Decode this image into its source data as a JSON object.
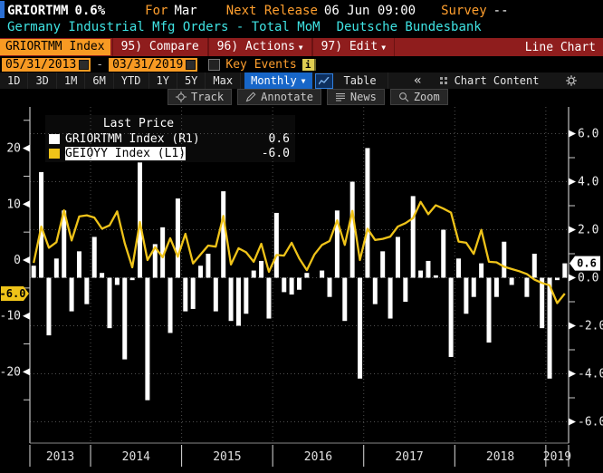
{
  "title_bar": {
    "ticker": "GRIORTMM",
    "last_value": "0.6%",
    "for_label": "For",
    "for_value": "Mar",
    "next_release_label": "Next Release",
    "next_release_value": "06 Jun 09:00",
    "survey_label": "Survey",
    "survey_value": "--",
    "description": "Germany Industrial Mfg Orders - Total MoM",
    "source": "Deutsche Bundesbank"
  },
  "toolbar": {
    "security_box": "GRIORTMM Index",
    "compare": "95) Compare",
    "actions": "96) Actions",
    "edit": "97) Edit",
    "view_label": "Line Chart"
  },
  "range_bar": {
    "start_date": "05/31/2013",
    "end_date": "03/31/2019",
    "separator": "-",
    "key_events_label": "Key Events",
    "info_icon_label": "i"
  },
  "period_bar": {
    "periods": [
      "1D",
      "3D",
      "1M",
      "6M",
      "YTD",
      "1Y",
      "5Y",
      "Max"
    ],
    "frequency": "Monthly",
    "table_label": "Table",
    "collapse_glyph": "«",
    "chart_content_label": "Chart Content"
  },
  "chart_toolbar": {
    "track": "Track",
    "annotate": "Annotate",
    "news": "News",
    "zoom": "Zoom"
  },
  "legend": {
    "title": "Last Price",
    "series": [
      {
        "label": "GRIORTMM Index  (R1)",
        "value": "0.6",
        "color": "#ffffff",
        "selected": false
      },
      {
        "label": "GEIOYY Index  (L1)",
        "value": "-6.0",
        "color": "#efc319",
        "selected": true
      }
    ]
  },
  "axes": {
    "left_ticks": [
      20,
      10,
      0,
      -10,
      -20
    ],
    "left_minor_ticks": [
      25,
      15,
      5,
      -5,
      -15,
      -25
    ],
    "left_badge": "-6.0",
    "left_badge_value": -6.0,
    "left_badge_color": "#efc319",
    "right_ticks": [
      "6.0",
      "4.0",
      "2.0",
      "0.0",
      "-2.0",
      "-4.0",
      "-6.0"
    ],
    "right_minor_ticks": [
      5,
      3,
      1,
      -1,
      -3,
      -5
    ],
    "right_badge": "0.6",
    "right_badge_value": 0.6,
    "right_badge_color": "#ffffff",
    "year_labels": [
      "2013",
      "2014",
      "2015",
      "2016",
      "2017",
      "2018",
      "2019"
    ]
  },
  "chart_data": {
    "type": "combo",
    "title": "GRIORTMM Index Line Chart",
    "x_start": "2013-05",
    "x_end": "2019-03",
    "frequency": "monthly",
    "grid": "dotted",
    "legend_position": "top-left",
    "left_ylim": [
      -27,
      27
    ],
    "right_ylim": [
      -7.1,
      6.9
    ],
    "months": [
      "2013-05",
      "2013-06",
      "2013-07",
      "2013-08",
      "2013-09",
      "2013-10",
      "2013-11",
      "2013-12",
      "2014-01",
      "2014-02",
      "2014-03",
      "2014-04",
      "2014-05",
      "2014-06",
      "2014-07",
      "2014-08",
      "2014-09",
      "2014-10",
      "2014-11",
      "2014-12",
      "2015-01",
      "2015-02",
      "2015-03",
      "2015-04",
      "2015-05",
      "2015-06",
      "2015-07",
      "2015-08",
      "2015-09",
      "2015-10",
      "2015-11",
      "2015-12",
      "2016-01",
      "2016-02",
      "2016-03",
      "2016-04",
      "2016-05",
      "2016-06",
      "2016-07",
      "2016-08",
      "2016-09",
      "2016-10",
      "2016-11",
      "2016-12",
      "2017-01",
      "2017-02",
      "2017-03",
      "2017-04",
      "2017-05",
      "2017-06",
      "2017-07",
      "2017-08",
      "2017-09",
      "2017-10",
      "2017-11",
      "2017-12",
      "2018-01",
      "2018-02",
      "2018-03",
      "2018-04",
      "2018-05",
      "2018-06",
      "2018-07",
      "2018-08",
      "2018-09",
      "2018-10",
      "2018-11",
      "2018-12",
      "2019-01",
      "2019-02",
      "2019-03"
    ],
    "series": [
      {
        "name": "GRIORTMM Index",
        "axis": "right",
        "style": "bar",
        "color": "#ffffff",
        "values": [
          0.5,
          4.4,
          -2.4,
          0.8,
          2.8,
          -1.4,
          1.1,
          -1.1,
          1.7,
          0.2,
          -2.1,
          -0.3,
          -3.4,
          -0.1,
          4.8,
          -5.1,
          1.4,
          2.1,
          -2.3,
          3.3,
          -1.4,
          -1.3,
          0.5,
          1.0,
          -1.4,
          3.6,
          -1.8,
          -2.0,
          -1.5,
          0.3,
          0.7,
          -1.7,
          2.7,
          -0.6,
          -0.7,
          -0.5,
          0.2,
          0.0,
          0.3,
          -0.8,
          2.8,
          -1.8,
          4.0,
          -4.2,
          5.4,
          -1.1,
          1.1,
          -1.7,
          1.7,
          -1.0,
          3.4,
          0.3,
          0.7,
          0.1,
          2.0,
          -3.3,
          0.8,
          -1.5,
          -0.8,
          0.6,
          -2.7,
          -0.8,
          1.5,
          -0.3,
          0.0,
          -0.8,
          1.0,
          -2.1,
          -4.2,
          -0.1,
          0.6
        ]
      },
      {
        "name": "GEIOYY Index",
        "axis": "left",
        "style": "line",
        "color": "#efc319",
        "values": [
          -0.5,
          6.0,
          2.2,
          3.2,
          8.9,
          3.5,
          7.8,
          8.0,
          7.6,
          5.6,
          6.2,
          8.7,
          3.0,
          -1.3,
          6.8,
          0.0,
          2.3,
          0.5,
          3.9,
          0.6,
          4.7,
          -0.6,
          1.0,
          2.6,
          2.4,
          7.9,
          -0.8,
          2.1,
          1.4,
          -0.3,
          2.9,
          -2.1,
          0.9,
          0.8,
          3.1,
          0.3,
          -1.8,
          1.0,
          2.7,
          3.4,
          7.1,
          2.7,
          8.8,
          0.0,
          5.6,
          3.6,
          3.8,
          4.2,
          6.0,
          6.6,
          7.5,
          10.4,
          8.2,
          9.8,
          9.2,
          8.5,
          3.3,
          3.1,
          1.1,
          5.4,
          -0.3,
          -0.4,
          -1.2,
          -1.6,
          -2.0,
          -2.5,
          -3.5,
          -4.1,
          -4.5,
          -7.7,
          -6.0
        ]
      }
    ]
  }
}
